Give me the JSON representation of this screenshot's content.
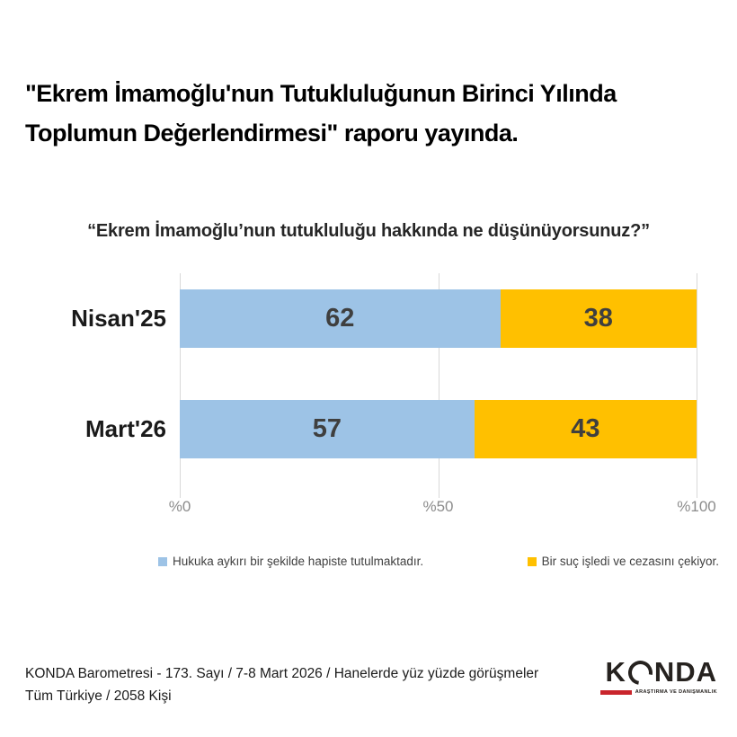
{
  "header": {
    "title": "\"Ekrem İmamoğlu'nun Tutukluluğunun Birinci Yılında Toplumun Değerlendirmesi\" raporu yayında."
  },
  "chart": {
    "question": "“Ekrem İmamoğlu’nun tutukluluğu hakkında ne düşünüyorsunuz?”"
  },
  "chart_data": {
    "type": "bar",
    "orientation": "horizontal",
    "stacked": true,
    "title": "“Ekrem İmamoğlu’nun tutukluluğu hakkında ne düşünüyorsunuz?”",
    "categories": [
      "Nisan'25",
      "Mart'26"
    ],
    "series": [
      {
        "name": "Hukuka aykırı bir şekilde hapiste tutulmaktadır.",
        "color": "#9DC3E6",
        "values": [
          62,
          57
        ]
      },
      {
        "name": "Bir suç işledi ve cezasını çekiyor.",
        "color": "#FFC000",
        "values": [
          38,
          43
        ]
      }
    ],
    "x_ticks": [
      "%0",
      "%50",
      "%100"
    ],
    "x_tick_values": [
      0,
      50,
      100
    ],
    "xlim": [
      0,
      100
    ],
    "grid": true,
    "value_labels": true,
    "legend_position": "bottom"
  },
  "footer": {
    "line1": "KONDA Barometresi - 173. Sayı / 7-8 Mart 2026 / Hanelerde yüz yüzde görüşmeler",
    "line2": "Tüm Türkiye / 2058 Kişi"
  },
  "logo": {
    "letters_before_o": "K",
    "letters_after_o": "NDA",
    "tagline": "ARAŞTIRMA VE DANIŞMANLIK"
  },
  "colors": {
    "series_blue": "#9DC3E6",
    "series_yellow": "#FFC000",
    "value_label": "#3F3F3F",
    "axis_label": "#8C8C8C",
    "gridline": "#D9D9D9",
    "logo_red": "#C9252C"
  }
}
